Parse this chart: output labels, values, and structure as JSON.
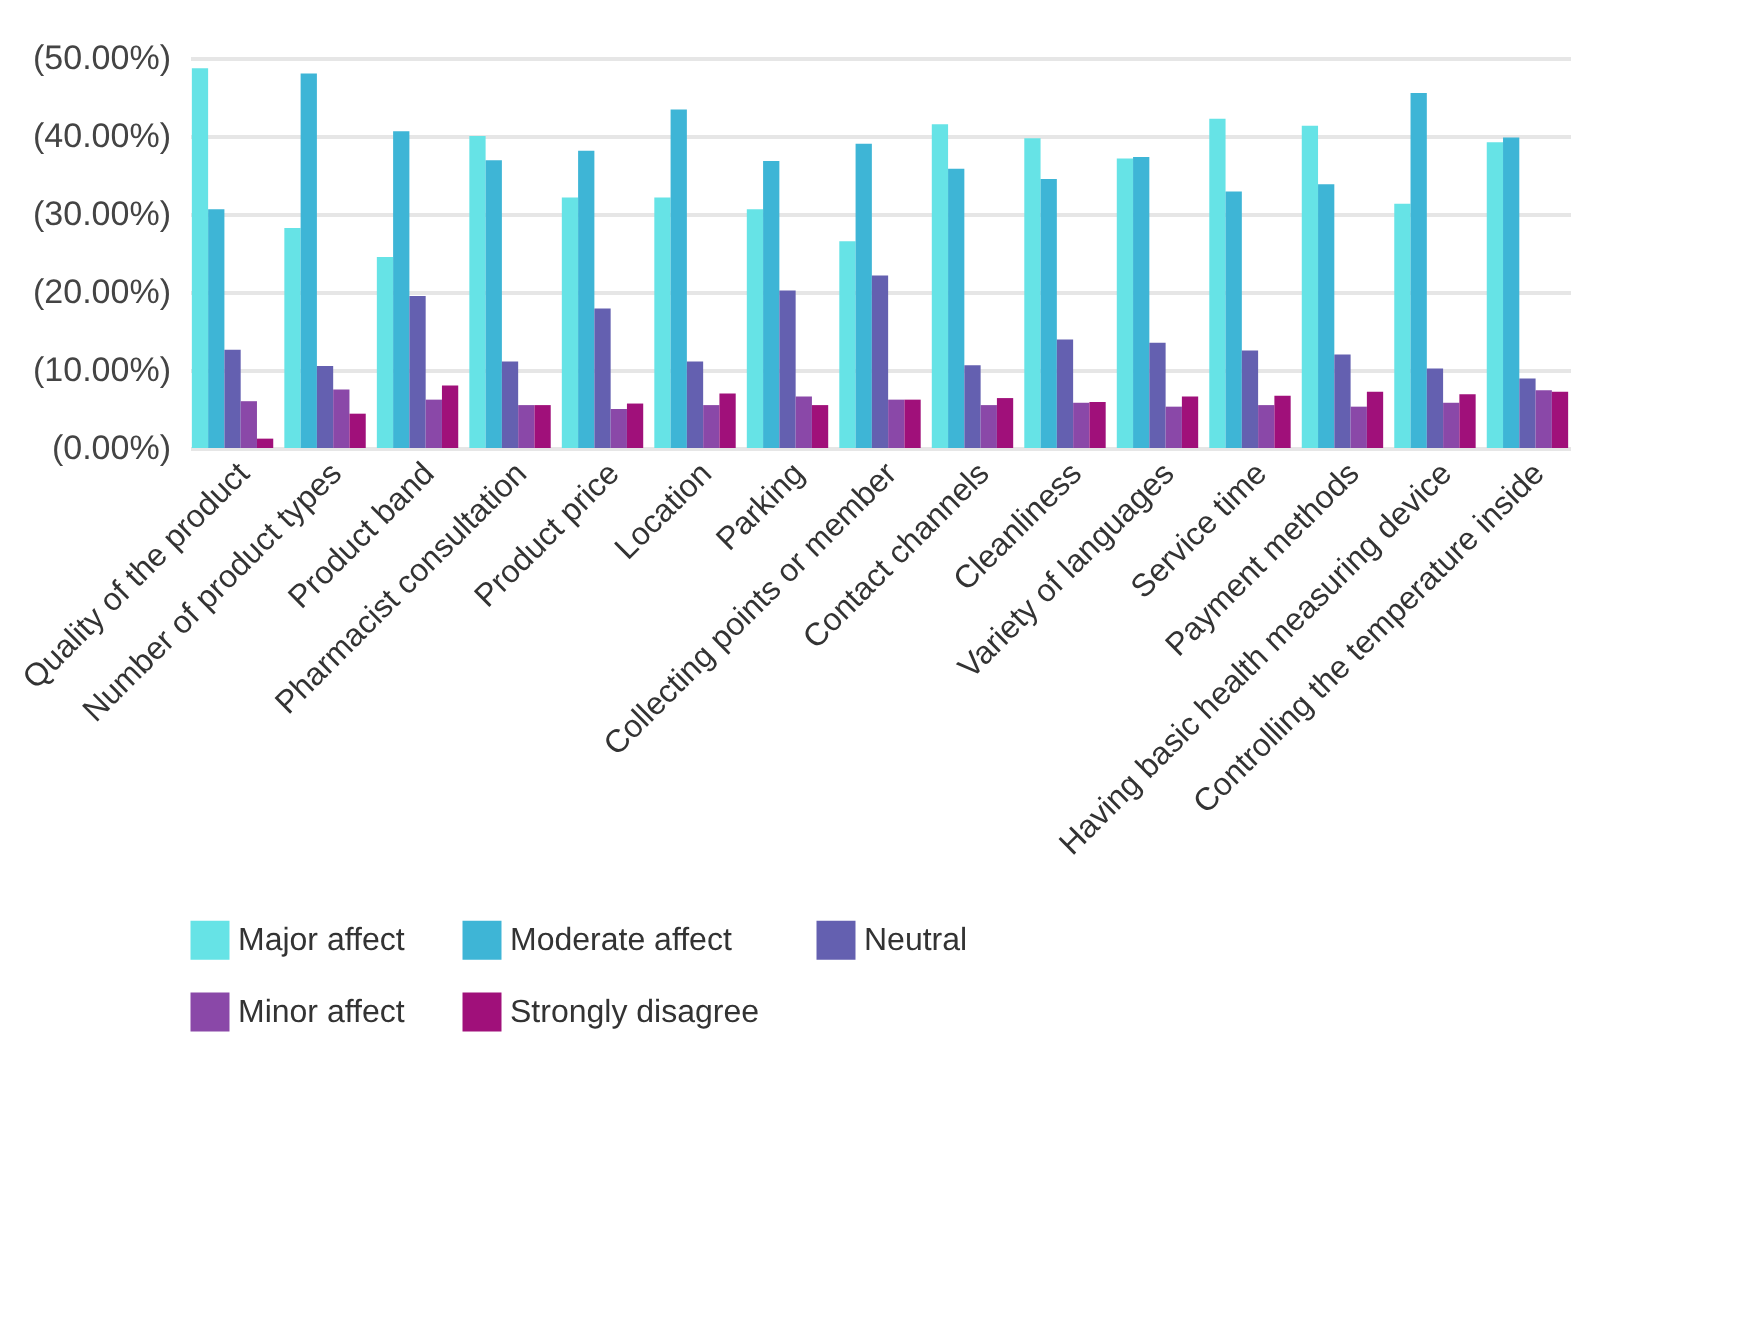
{
  "chart_data": {
    "type": "bar",
    "categories": [
      "Quality of the product",
      "Number of product types",
      "Product band",
      "Pharmacist consultation",
      "Product price",
      "Location",
      "Parking",
      "Collecting points or member",
      "Contact channels",
      "Cleanliness",
      "Variety of languages",
      "Service time",
      "Payment methods",
      "Having basic health measuring device",
      "Controlling the temperature inside"
    ],
    "series": [
      {
        "name": "Major affect",
        "color": "#66e3e6",
        "values": [
          48.7,
          28.2,
          24.5,
          40.0,
          32.1,
          32.1,
          30.6,
          26.5,
          41.5,
          39.7,
          37.1,
          42.2,
          41.3,
          31.3,
          39.2
        ]
      },
      {
        "name": "Moderate affect",
        "color": "#3eb5d6",
        "values": [
          30.6,
          48.0,
          40.6,
          36.9,
          38.1,
          43.4,
          36.8,
          39.0,
          35.8,
          34.5,
          37.3,
          32.9,
          33.8,
          45.5,
          39.8
        ]
      },
      {
        "name": "Neutral",
        "color": "#6460b0",
        "values": [
          12.6,
          10.5,
          19.5,
          11.1,
          17.9,
          11.1,
          20.2,
          22.1,
          10.6,
          13.9,
          13.5,
          12.5,
          12.0,
          10.2,
          8.9
        ]
      },
      {
        "name": "Minor affect",
        "color": "#8a48a8",
        "values": [
          6.0,
          7.5,
          6.2,
          5.5,
          5.0,
          5.5,
          6.6,
          6.2,
          5.5,
          5.8,
          5.3,
          5.5,
          5.3,
          5.8,
          7.4
        ]
      },
      {
        "name": "Strongly disagree",
        "color": "#a0107a",
        "values": [
          1.2,
          4.4,
          8.0,
          5.5,
          5.7,
          7.0,
          5.5,
          6.2,
          6.4,
          5.9,
          6.6,
          6.7,
          7.2,
          6.9,
          7.2
        ]
      }
    ],
    "ylim": [
      0,
      50
    ],
    "yticks": [
      {
        "value": 0,
        "label": "(0.00%)"
      },
      {
        "value": 10,
        "label": "(10.00%)"
      },
      {
        "value": 20,
        "label": "(20.00%)"
      },
      {
        "value": 30,
        "label": "(30.00%)"
      },
      {
        "value": 40,
        "label": "(40.00%)"
      },
      {
        "value": 50,
        "label": "(50.00%)"
      }
    ],
    "grid": "y",
    "legend": "bottom"
  }
}
